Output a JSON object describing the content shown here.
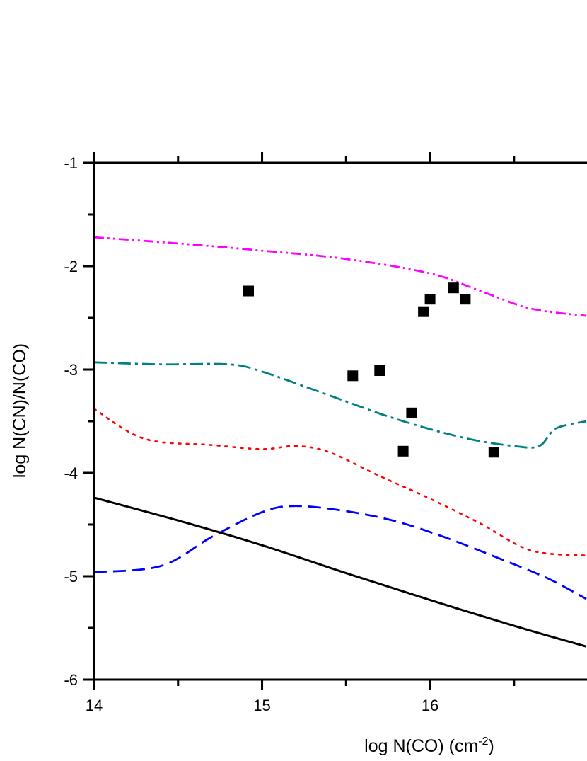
{
  "chart_data": {
    "type": "scatter",
    "xlabel": "log N(CO) (cm",
    "xlabel_superscript": "-2",
    "xlabel_close": ")",
    "ylabel": "log N(CN)/N(CO)",
    "xlim": [
      14,
      17
    ],
    "ylim": [
      -6,
      -1
    ],
    "x_ticks": [
      "14",
      "15",
      "16"
    ],
    "y_ticks": [
      "-1",
      "-2",
      "-3",
      "-4",
      "-5",
      "-6"
    ],
    "grid": false,
    "legend": "none",
    "points": [
      {
        "x": 14.92,
        "y": -2.24
      },
      {
        "x": 15.54,
        "y": -3.06
      },
      {
        "x": 15.7,
        "y": -3.01
      },
      {
        "x": 15.84,
        "y": -3.79
      },
      {
        "x": 15.89,
        "y": -3.42
      },
      {
        "x": 15.96,
        "y": -2.44
      },
      {
        "x": 16.0,
        "y": -2.32
      },
      {
        "x": 16.14,
        "y": -2.21
      },
      {
        "x": 16.21,
        "y": -2.32
      },
      {
        "x": 16.38,
        "y": -3.8
      }
    ],
    "curves": [
      {
        "color": "#ff00ff",
        "style": "dash-dot-dot",
        "x": [
          14.0,
          14.5,
          15.0,
          15.5,
          16.0,
          16.3,
          16.6,
          16.93
        ],
        "y": [
          -1.72,
          -1.78,
          -1.85,
          -1.93,
          -2.07,
          -2.24,
          -2.41,
          -2.48
        ]
      },
      {
        "color": "#008080",
        "style": "dash-dot",
        "x": [
          14.0,
          14.4,
          14.8,
          15.0,
          15.4,
          15.8,
          16.2,
          16.5,
          16.65,
          16.75,
          16.93
        ],
        "y": [
          -2.93,
          -2.95,
          -2.95,
          -3.02,
          -3.25,
          -3.48,
          -3.66,
          -3.74,
          -3.74,
          -3.57,
          -3.5
        ]
      },
      {
        "color": "#ff0000",
        "style": "dotted",
        "x": [
          14.0,
          14.3,
          14.7,
          15.0,
          15.2,
          15.4,
          15.7,
          16.0,
          16.3,
          16.6,
          16.93
        ],
        "y": [
          -3.38,
          -3.67,
          -3.73,
          -3.77,
          -3.74,
          -3.8,
          -4.03,
          -4.25,
          -4.49,
          -4.75,
          -4.8
        ]
      },
      {
        "color": "#0000ff",
        "style": "dashed",
        "x": [
          14.0,
          14.4,
          14.7,
          15.0,
          15.2,
          15.5,
          15.8,
          16.1,
          16.4,
          16.7,
          16.93
        ],
        "y": [
          -4.96,
          -4.9,
          -4.62,
          -4.38,
          -4.32,
          -4.37,
          -4.47,
          -4.63,
          -4.82,
          -5.02,
          -5.22
        ]
      },
      {
        "color": "#000000",
        "style": "solid",
        "x": [
          14.0,
          14.5,
          15.0,
          15.5,
          16.0,
          16.5,
          16.93
        ],
        "y": [
          -4.24,
          -4.46,
          -4.7,
          -4.97,
          -5.23,
          -5.48,
          -5.68
        ]
      }
    ]
  }
}
